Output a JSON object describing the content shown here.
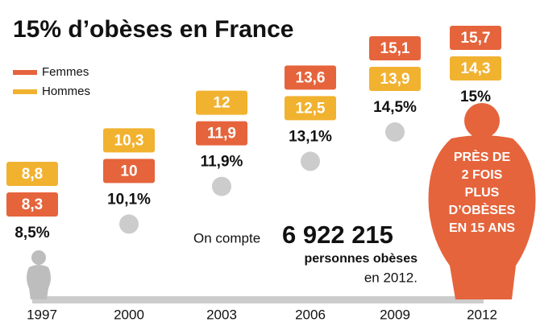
{
  "chart_data": {
    "type": "line",
    "title": "15% d’obèses en France",
    "categories": [
      "1997",
      "2000",
      "2003",
      "2006",
      "2009",
      "2012"
    ],
    "values": [
      8.5,
      10.1,
      11.9,
      13.1,
      14.5,
      15
    ],
    "value_labels": [
      "8,5%",
      "10,1%",
      "11,9%",
      "13,1%",
      "14,5%",
      "15%"
    ],
    "color": "#cccccc",
    "series": [
      {
        "name": "Femmes",
        "color": "#e5643c",
        "values": [
          8.3,
          10,
          11.9,
          13.6,
          15.1,
          15.7
        ],
        "value_labels": [
          "8,3",
          "10",
          "11,9",
          "13,6",
          "15,1",
          "15,7"
        ]
      },
      {
        "name": "Hommes",
        "color": "#f1b230",
        "values": [
          8.8,
          10.3,
          12,
          12.5,
          13.9,
          14.3
        ],
        "value_labels": [
          "8,8",
          "10,3",
          "12",
          "12,5",
          "13,9",
          "14,3"
        ]
      }
    ],
    "annotations": {
      "count_intro": "On compte",
      "count": "6 922 215",
      "count_unit": "personnes obèses",
      "count_year": "en 2012.",
      "callout": [
        "PRÈS DE",
        "2 FOIS",
        "PLUS",
        "D’OBÈSES",
        "EN 15 ANS"
      ]
    }
  }
}
